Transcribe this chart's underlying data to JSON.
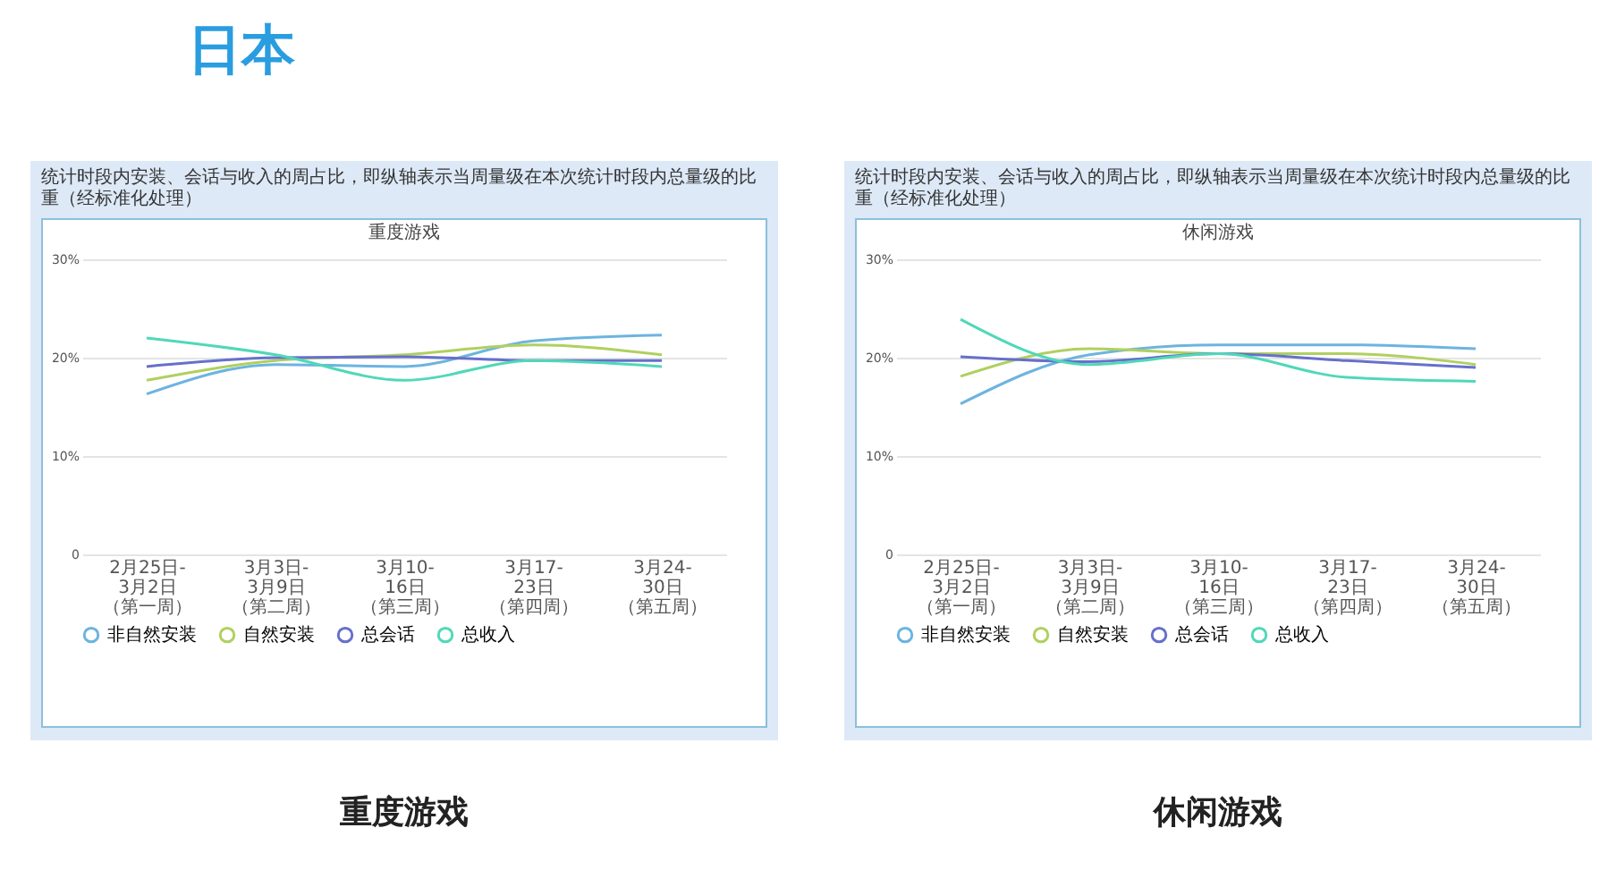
{
  "chart_data": [
    {
      "type": "line",
      "title": "统计时段内安装、会话与收入的周占比，即纵轴表示当周量级在本次统计时段内总量级的比重（经标准化处理）",
      "subtitle": "重度游戏",
      "annotations": [
        "日本",
        "重度游戏"
      ],
      "categories": [
        "2月25日-3月2日（第一周）",
        "3月3日-3月9日（第二周）",
        "3月10-16日（第三周）",
        "3月17-23日（第四周）",
        "3月24-30日（第五周）"
      ],
      "series": [
        {
          "name": "非自然安装",
          "color": "#6cb4e0",
          "values": [
            16.3,
            19.3,
            19.1,
            21.7,
            22.3
          ]
        },
        {
          "name": "自然安装",
          "color": "#b0d060",
          "values": [
            17.7,
            19.7,
            20.3,
            21.3,
            20.3
          ]
        },
        {
          "name": "总会话",
          "color": "#6670cc",
          "values": [
            19.1,
            20.0,
            20.1,
            19.7,
            19.7
          ]
        },
        {
          "name": "总收入",
          "color": "#50d8b8",
          "values": [
            22.0,
            20.3,
            17.7,
            19.7,
            19.1
          ]
        }
      ],
      "ylim": [
        0,
        30
      ],
      "yticks": [
        0,
        {
          "value": 10,
          "label": "10%"
        },
        {
          "value": 20,
          "label": "20%"
        },
        {
          "value": 30,
          "label": "30%"
        }
      ],
      "grid": "y",
      "legend": "bottom",
      "marker": "none",
      "line_style": "solid"
    },
    {
      "type": "line",
      "title": "统计时段内安装、会话与收入的周占比，即纵轴表示当周量级在本次统计时段内总量级的比重（经标准化处理）",
      "subtitle": "休闲游戏",
      "annotations": [
        "休闲游戏"
      ],
      "categories": [
        "2月25日-3月2日（第一周）",
        "3月3日-3月9日（第二周）",
        "3月10-16日（第三周）",
        "3月17-23日（第四周）",
        "3月24-30日（第五周）"
      ],
      "series": [
        {
          "name": "非自然安装",
          "color": "#6cb4e0",
          "values": [
            15.3,
            20.3,
            21.3,
            21.3,
            20.9
          ]
        },
        {
          "name": "自然安装",
          "color": "#b0d060",
          "values": [
            18.1,
            20.9,
            20.4,
            20.4,
            19.3
          ]
        },
        {
          "name": "总会话",
          "color": "#6670cc",
          "values": [
            20.1,
            19.6,
            20.4,
            19.7,
            19.0
          ]
        },
        {
          "name": "总收入",
          "color": "#50d8b8",
          "values": [
            23.9,
            19.3,
            20.4,
            18.0,
            17.6
          ]
        }
      ],
      "ylim": [
        0,
        30
      ],
      "yticks": [
        0,
        {
          "value": 10,
          "label": "10%"
        },
        {
          "value": 20,
          "label": "20%"
        },
        {
          "value": 30,
          "label": "30%"
        }
      ],
      "grid": "y",
      "legend": "bottom",
      "marker": "none",
      "line_style": "solid"
    }
  ]
}
